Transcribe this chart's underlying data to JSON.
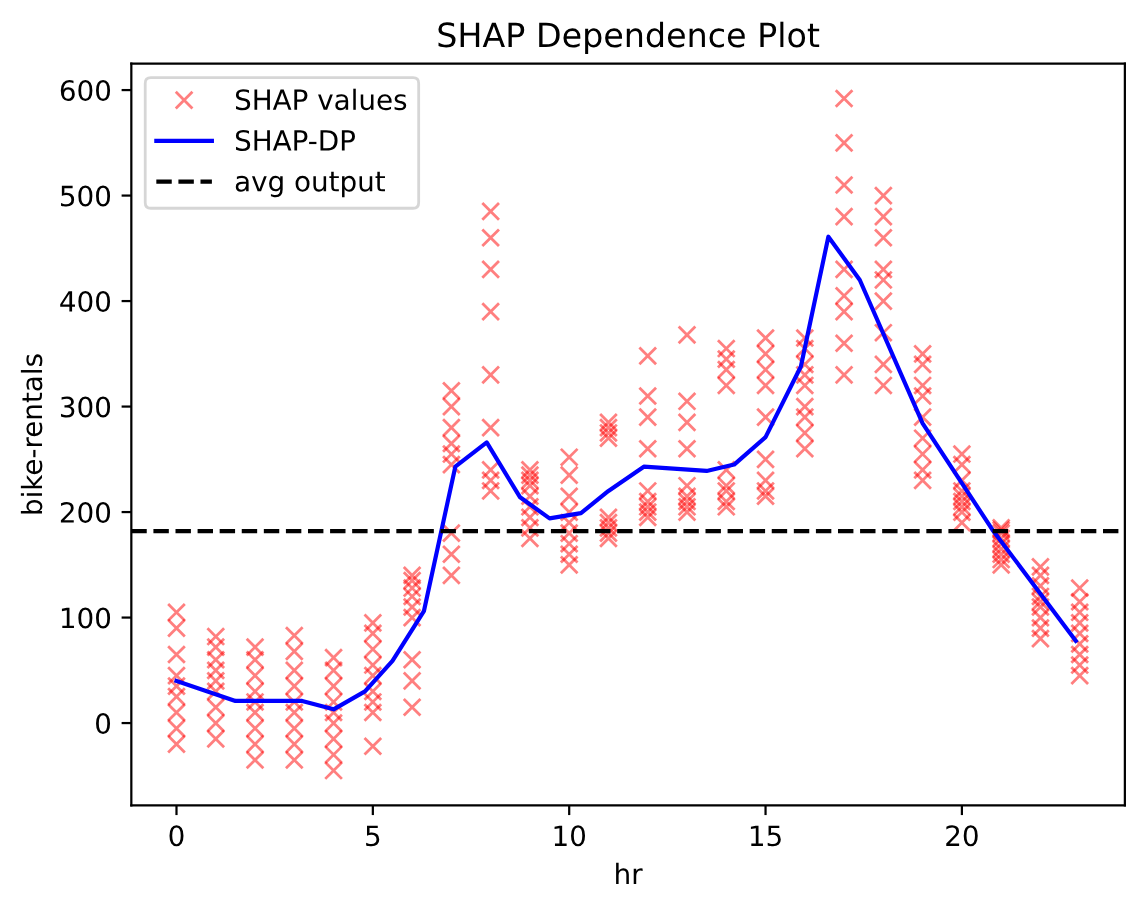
{
  "chart_data": {
    "type": "scatter",
    "title": "SHAP Dependence Plot",
    "xlabel": "hr",
    "ylabel": "bike-rentals",
    "xlim": [
      -1.15,
      24.15
    ],
    "ylim": [
      -78,
      625
    ],
    "xticks": [
      0,
      5,
      10,
      15,
      20
    ],
    "yticks": [
      0,
      100,
      200,
      300,
      400,
      500,
      600
    ],
    "grid": false,
    "legend": "top left",
    "series": [
      {
        "name": "SHAP values",
        "color": "#ff0000",
        "marker": "cross",
        "line_style": "none",
        "x": [
          0,
          0,
          0,
          0,
          0,
          0,
          0,
          0,
          0,
          1,
          1,
          1,
          1,
          1,
          1,
          1,
          1,
          1,
          2,
          2,
          2,
          2,
          2,
          2,
          2,
          2,
          2,
          3,
          3,
          3,
          3,
          3,
          3,
          3,
          3,
          3,
          4,
          4,
          4,
          4,
          4,
          4,
          4,
          4,
          4,
          5,
          5,
          5,
          5,
          5,
          5,
          5,
          5,
          5,
          6,
          6,
          6,
          6,
          6,
          6,
          6,
          6,
          6,
          7,
          7,
          7,
          7,
          7,
          7,
          7,
          7,
          7,
          8,
          8,
          8,
          8,
          8,
          8,
          8,
          8,
          8,
          9,
          9,
          9,
          9,
          9,
          9,
          9,
          9,
          9,
          10,
          10,
          10,
          10,
          10,
          10,
          10,
          10,
          10,
          11,
          11,
          11,
          11,
          11,
          11,
          11,
          11,
          11,
          12,
          12,
          12,
          12,
          12,
          12,
          12,
          12,
          12,
          13,
          13,
          13,
          13,
          13,
          13,
          13,
          13,
          13,
          14,
          14,
          14,
          14,
          14,
          14,
          14,
          14,
          14,
          15,
          15,
          15,
          15,
          15,
          15,
          15,
          15,
          15,
          16,
          16,
          16,
          16,
          16,
          16,
          16,
          16,
          16,
          17,
          17,
          17,
          17,
          17,
          17,
          17,
          17,
          17,
          18,
          18,
          18,
          18,
          18,
          18,
          18,
          18,
          18,
          19,
          19,
          19,
          19,
          19,
          19,
          19,
          19,
          19,
          20,
          20,
          20,
          20,
          20,
          20,
          20,
          20,
          20,
          21,
          21,
          21,
          21,
          21,
          21,
          21,
          21,
          21,
          22,
          22,
          22,
          22,
          22,
          22,
          22,
          22,
          22,
          23,
          23,
          23,
          23,
          23,
          23,
          23,
          23,
          23
        ],
        "values": [
          -20,
          -5,
          10,
          25,
          35,
          45,
          65,
          90,
          105,
          -15,
          0,
          15,
          30,
          40,
          50,
          60,
          72,
          82,
          -35,
          -20,
          -5,
          10,
          20,
          30,
          45,
          60,
          72,
          -35,
          -20,
          -5,
          10,
          20,
          35,
          50,
          68,
          83,
          -45,
          -30,
          -15,
          0,
          10,
          20,
          35,
          50,
          62,
          -22,
          10,
          20,
          30,
          45,
          55,
          70,
          85,
          95,
          15,
          40,
          60,
          100,
          110,
          120,
          128,
          135,
          140,
          140,
          160,
          180,
          245,
          255,
          265,
          280,
          300,
          315,
          220,
          230,
          240,
          280,
          330,
          390,
          430,
          460,
          485,
          175,
          185,
          195,
          205,
          215,
          225,
          230,
          235,
          240,
          150,
          160,
          170,
          180,
          190,
          200,
          215,
          235,
          252,
          175,
          180,
          185,
          190,
          195,
          270,
          275,
          280,
          285,
          195,
          200,
          205,
          210,
          220,
          260,
          290,
          310,
          348,
          200,
          205,
          210,
          215,
          225,
          260,
          285,
          305,
          368,
          205,
          210,
          220,
          225,
          240,
          320,
          335,
          345,
          355,
          215,
          220,
          230,
          250,
          290,
          320,
          335,
          350,
          365,
          260,
          275,
          290,
          300,
          320,
          330,
          340,
          355,
          365,
          330,
          360,
          390,
          405,
          430,
          480,
          510,
          550,
          592,
          320,
          340,
          370,
          400,
          420,
          430,
          460,
          480,
          500,
          230,
          240,
          255,
          270,
          290,
          310,
          320,
          340,
          350,
          190,
          200,
          205,
          210,
          215,
          220,
          230,
          245,
          255,
          150,
          155,
          160,
          165,
          170,
          175,
          180,
          183,
          185,
          80,
          90,
          100,
          110,
          115,
          120,
          130,
          140,
          148,
          45,
          55,
          65,
          75,
          85,
          95,
          105,
          115,
          128
        ]
      },
      {
        "name": "SHAP-DP",
        "type": "line",
        "color": "#0000ff",
        "marker": "none",
        "line_style": "solid",
        "x": [
          0,
          1.5,
          3.2,
          4.0,
          4.8,
          5.5,
          6.3,
          7.1,
          7.9,
          8.75,
          9.5,
          10.3,
          11.0,
          11.9,
          13.5,
          14.2,
          15.0,
          15.9,
          16.6,
          17.4,
          19.0,
          20.8,
          22.9
        ],
        "values": [
          40,
          21,
          21,
          13,
          30,
          59,
          106,
          243,
          266,
          214,
          194,
          199,
          220,
          243,
          239,
          245,
          271,
          338,
          461,
          420,
          284,
          182,
          78
        ]
      }
    ],
    "ref_lines": [
      {
        "axis": "y",
        "value": 182,
        "label": "avg output",
        "color": "#000000",
        "line_style": "dashed"
      }
    ]
  }
}
